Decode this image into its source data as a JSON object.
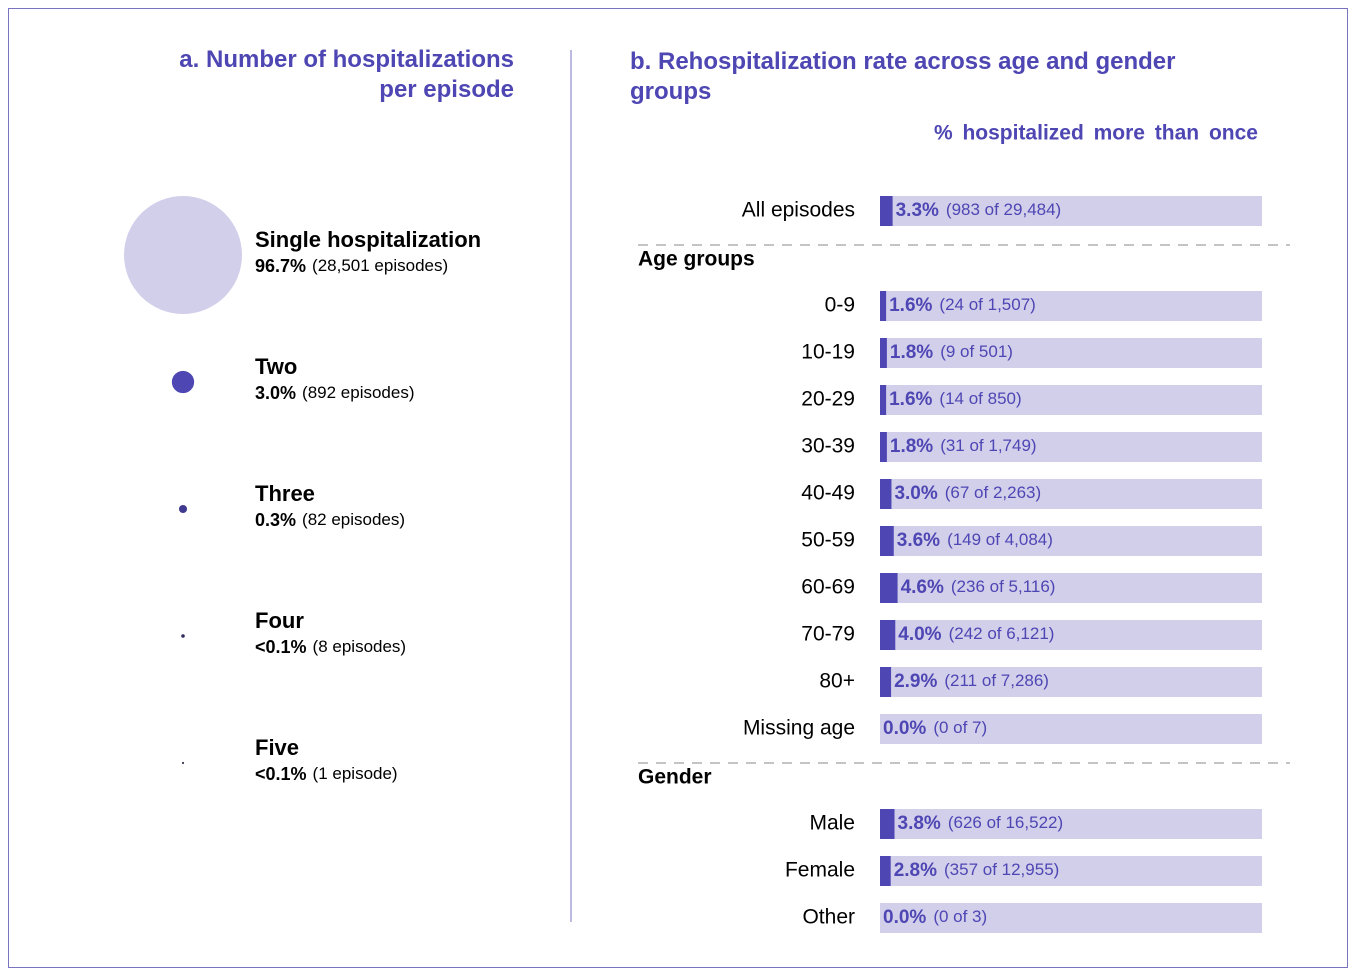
{
  "chart_data": [
    {
      "type": "bubble",
      "title": "a. Number of hospitalizations per episode",
      "categories": [
        "Single hospitalization",
        "Two",
        "Three",
        "Four",
        "Five"
      ],
      "values": [
        96.7,
        3.0,
        0.3,
        0.03,
        0.003
      ],
      "value_labels": [
        "96.7%",
        "3.0%",
        "0.3%",
        "<0.1%",
        "<0.1%"
      ],
      "count_labels": [
        "(28,501 episodes)",
        "(892 episodes)",
        "(82 episodes)",
        "(8 episodes)",
        "(1 episode)"
      ],
      "colors": [
        "#d2cfeb",
        "#4e46b3",
        "#3f3a8f",
        "#2e2b5e",
        "#1e1c33"
      ]
    },
    {
      "type": "bar",
      "title": "b. Rehospitalization rate across age and gender groups",
      "x_label": "% hospitalized  more  than  once",
      "xlim": [
        0,
        100
      ],
      "color": "#4e46b3",
      "background_color": "#d2cfeb",
      "groups": [
        {
          "categories": [
            "All episodes"
          ],
          "values": [
            3.3
          ],
          "value_labels": [
            "3.3%"
          ],
          "count_labels": [
            "(983 of 29,484)"
          ]
        },
        {
          "name": "Age groups",
          "categories": [
            "0-9",
            "10-19",
            "20-29",
            "30-39",
            "40-49",
            "50-59",
            "60-69",
            "70-79",
            "80+",
            "Missing age"
          ],
          "values": [
            1.6,
            1.8,
            1.6,
            1.8,
            3.0,
            3.6,
            4.6,
            4.0,
            2.9,
            0.0
          ],
          "value_labels": [
            "1.6%",
            "1.8%",
            "1.6%",
            "1.8%",
            "3.0%",
            "3.6%",
            "4.6%",
            "4.0%",
            "2.9%",
            "0.0%"
          ],
          "count_labels": [
            "(24 of 1,507)",
            "(9 of 501)",
            "(14 of 850)",
            "(31 of 1,749)",
            "(67 of 2,263)",
            "(149 of 4,084)",
            "(236 of 5,116)",
            "(242 of 6,121)",
            "(211 of 7,286)",
            "(0 of 7)"
          ]
        },
        {
          "name": "Gender",
          "categories": [
            "Male",
            "Female",
            "Other"
          ],
          "values": [
            3.8,
            2.8,
            0.0
          ],
          "value_labels": [
            "3.8%",
            "2.8%",
            "0.0%"
          ],
          "count_labels": [
            "(626 of 16,522)",
            "(357 of 12,955)",
            "(0 of 3)"
          ]
        }
      ]
    }
  ]
}
